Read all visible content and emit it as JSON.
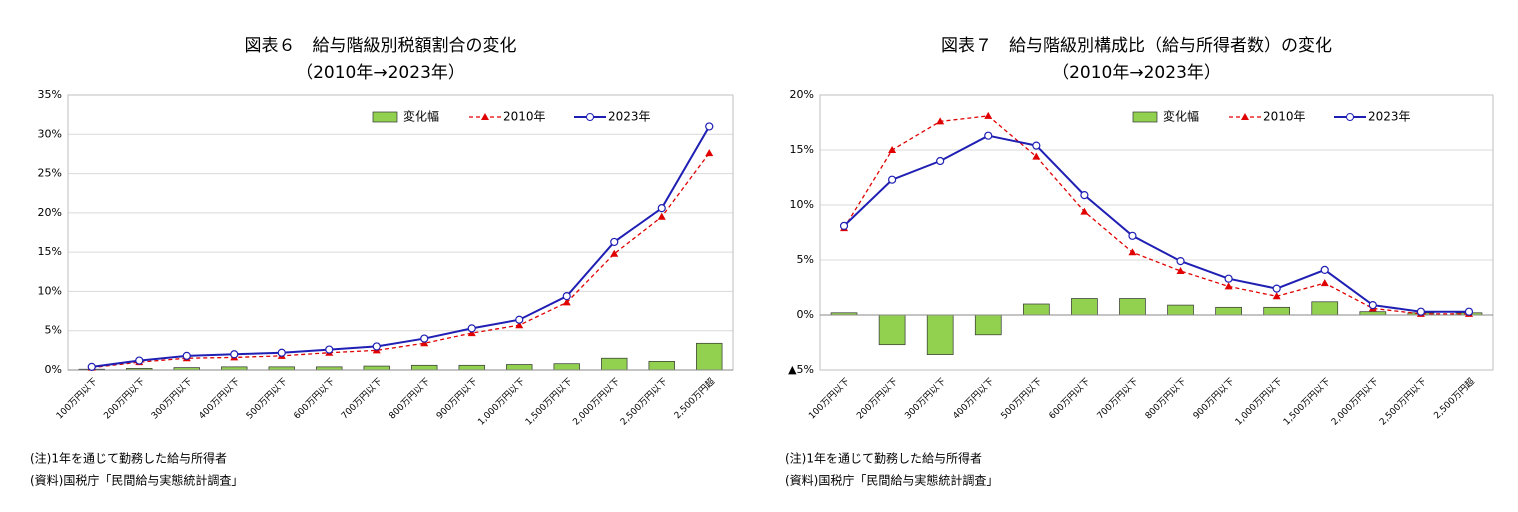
{
  "chart_data": [
    {
      "type": "combo",
      "title": "図表６　給与階級別税額割合の変化",
      "subtitle": "（2010年→2023年）",
      "categories": [
        "100万円以下",
        "200万円以下",
        "300万円以下",
        "400万円以下",
        "500万円以下",
        "600万円以下",
        "700万円以下",
        "800万円以下",
        "900万円以下",
        "1,000万円以下",
        "1,500万円以下",
        "2,000万円以下",
        "2,500万円以下",
        "2,500万円超"
      ],
      "series": [
        {
          "name": "変化幅",
          "kind": "bar",
          "color": "#92d050",
          "values": [
            0.1,
            0.2,
            0.3,
            0.4,
            0.4,
            0.4,
            0.5,
            0.6,
            0.6,
            0.7,
            0.8,
            1.5,
            1.1,
            3.4
          ]
        },
        {
          "name": "2010年",
          "kind": "line",
          "color": "#e00000",
          "values": [
            0.3,
            1.0,
            1.5,
            1.6,
            1.8,
            2.2,
            2.5,
            3.4,
            4.7,
            5.7,
            8.6,
            14.8,
            19.5,
            27.6
          ]
        },
        {
          "name": "2023年",
          "kind": "line",
          "color": "#1f1fb4",
          "values": [
            0.4,
            1.2,
            1.8,
            2.0,
            2.2,
            2.6,
            3.0,
            4.0,
            5.3,
            6.4,
            9.4,
            16.3,
            20.6,
            31.0
          ]
        }
      ],
      "ylim": [
        0,
        35
      ],
      "yticks": [
        {
          "value": 0,
          "label": "0%"
        },
        {
          "value": 5,
          "label": "5%"
        },
        {
          "value": 10,
          "label": "10%"
        },
        {
          "value": 15,
          "label": "15%"
        },
        {
          "value": 20,
          "label": "20%"
        },
        {
          "value": 25,
          "label": "25%"
        },
        {
          "value": 30,
          "label": "30%"
        },
        {
          "value": 35,
          "label": "35%"
        }
      ],
      "grid": true,
      "legend": "upper right",
      "note": "(注)1年を通じて勤務した給与所得者",
      "source": "(資料)国税庁「民間給与実態統計調査」"
    },
    {
      "type": "combo",
      "title": "図表７　給与階級別構成比（給与所得者数）の変化",
      "subtitle": "（2010年→2023年）",
      "categories": [
        "100万円以下",
        "200万円以下",
        "300万円以下",
        "400万円以下",
        "500万円以下",
        "600万円以下",
        "700万円以下",
        "800万円以下",
        "900万円以下",
        "1,000万円以下",
        "1,500万円以下",
        "2,000万円以下",
        "2,500万円以下",
        "2,500万円超"
      ],
      "series": [
        {
          "name": "変化幅",
          "kind": "bar",
          "color": "#92d050",
          "values": [
            0.2,
            -2.7,
            -3.6,
            -1.8,
            1.0,
            1.5,
            1.5,
            0.9,
            0.7,
            0.7,
            1.2,
            0.3,
            0.2,
            0.2
          ]
        },
        {
          "name": "2010年",
          "kind": "line",
          "color": "#e00000",
          "values": [
            7.9,
            15.0,
            17.6,
            18.1,
            14.4,
            9.4,
            5.7,
            4.0,
            2.6,
            1.7,
            2.9,
            0.6,
            0.1,
            0.1
          ]
        },
        {
          "name": "2023年",
          "kind": "line",
          "color": "#1f1fb4",
          "values": [
            8.1,
            12.3,
            14.0,
            16.3,
            15.4,
            10.9,
            7.2,
            4.9,
            3.3,
            2.4,
            4.1,
            0.9,
            0.3,
            0.3
          ]
        }
      ],
      "ylim": [
        -5,
        20
      ],
      "yticks": [
        {
          "value": -5,
          "label": "▲5%"
        },
        {
          "value": 0,
          "label": "0%"
        },
        {
          "value": 5,
          "label": "5%"
        },
        {
          "value": 10,
          "label": "10%"
        },
        {
          "value": 15,
          "label": "15%"
        },
        {
          "value": 20,
          "label": "20%"
        }
      ],
      "grid": true,
      "legend": "upper right",
      "note": "(注)1年を通じて勤務した給与所得者",
      "source": "(資料)国税庁「民間給与実態統計調査」"
    }
  ]
}
